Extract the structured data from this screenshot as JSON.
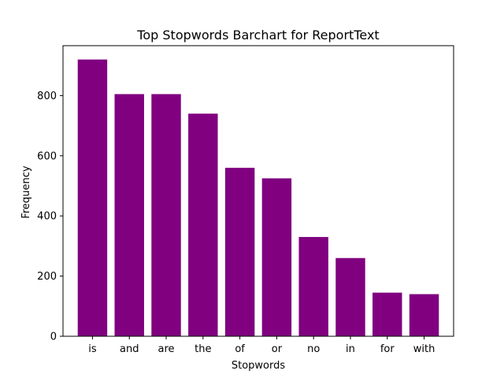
{
  "chart_data": {
    "type": "bar",
    "title": "Top Stopwords Barchart for ReportText",
    "xlabel": "Stopwords",
    "ylabel": "Frequency",
    "categories": [
      "is",
      "and",
      "are",
      "the",
      "of",
      "or",
      "no",
      "in",
      "for",
      "with"
    ],
    "values": [
      920,
      805,
      805,
      740,
      560,
      525,
      330,
      260,
      145,
      140
    ],
    "yticks": [
      0,
      200,
      400,
      600,
      800
    ],
    "ylim": [
      0,
      966
    ],
    "grid": false,
    "legend": "none",
    "colors": {
      "bar": "#800080",
      "axis": "#000000",
      "background": "#ffffff"
    }
  }
}
